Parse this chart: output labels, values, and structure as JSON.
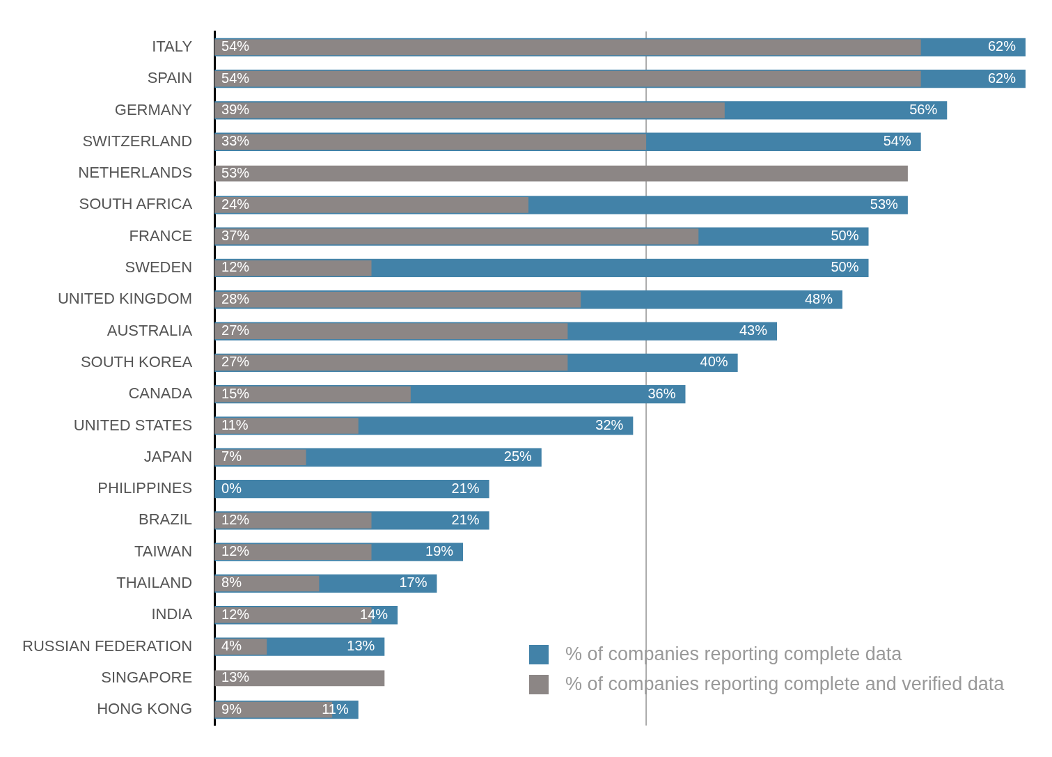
{
  "chart_data": {
    "type": "bar",
    "orientation": "horizontal",
    "stacked": false,
    "tick_labels": "y",
    "grid": false,
    "legend": "bottom right",
    "xlim": [
      0,
      62
    ],
    "categories": [
      "ITALY",
      "SPAIN",
      "GERMANY",
      "SWITZERLAND",
      "NETHERLANDS",
      "SOUTH AFRICA",
      "FRANCE",
      "SWEDEN",
      "UNITED KINGDOM",
      "AUSTRALIA",
      "SOUTH KOREA",
      "CANADA",
      "UNITED STATES",
      "JAPAN",
      "PHILIPPINES",
      "BRAZIL",
      "TAIWAN",
      "THAILAND",
      "INDIA",
      "RUSSIAN FEDERATION",
      "SINGAPORE",
      "HONG KONG"
    ],
    "series": [
      {
        "name": "% of companies reporting complete data",
        "color": "#4282a8",
        "values": [
          62,
          62,
          56,
          54,
          null,
          53,
          50,
          50,
          48,
          43,
          40,
          36,
          32,
          25,
          21,
          21,
          19,
          17,
          14,
          13,
          null,
          11
        ],
        "value_labels": [
          "62%",
          "62%",
          "56%",
          "54%",
          null,
          "53%",
          "50%",
          "50%",
          "48%",
          "43%",
          "40%",
          "36%",
          "32%",
          "25%",
          "21%",
          "21%",
          "19%",
          "17%",
          "14%",
          "13%",
          null,
          "11%"
        ]
      },
      {
        "name": "% of companies reporting complete and verified data",
        "color": "#8c8685",
        "values": [
          54,
          54,
          39,
          33,
          53,
          24,
          37,
          12,
          28,
          27,
          27,
          15,
          11,
          7,
          0,
          12,
          12,
          8,
          12,
          4,
          13,
          9
        ],
        "value_labels": [
          "54%",
          "54%",
          "39%",
          "33%",
          "53%",
          "24%",
          "37%",
          "12%",
          "28%",
          "27%",
          "27%",
          "15%",
          "11%",
          "7%",
          "0%",
          "12%",
          "12%",
          "8%",
          "12%",
          "4%",
          "13%",
          "9%"
        ]
      }
    ],
    "ref_lines": [
      {
        "axis": "x",
        "value": 33,
        "color": "#aaaaaa"
      }
    ]
  }
}
